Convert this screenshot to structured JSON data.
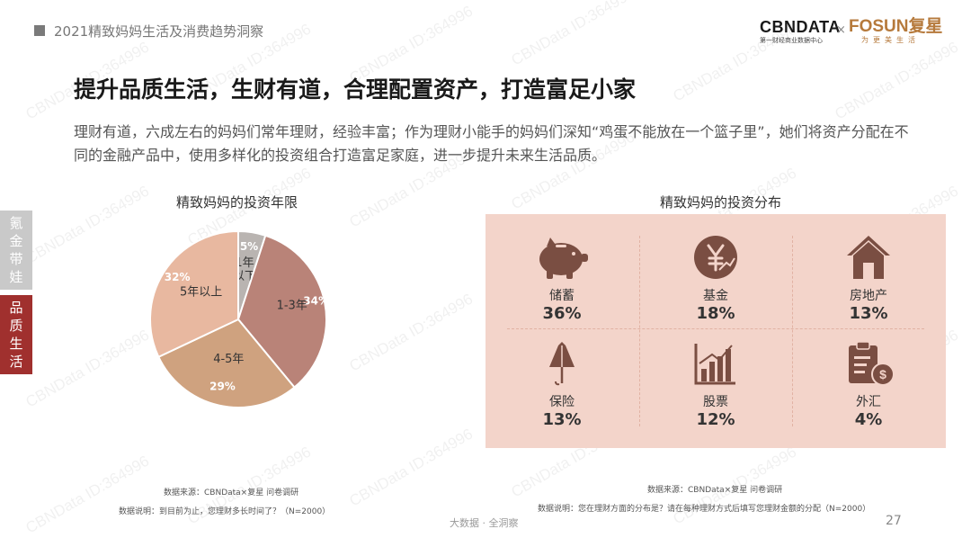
{
  "header": {
    "report_title": "2021精致妈妈生活及消费趋势洞察",
    "logo_cbn": "CBNDATA",
    "logo_cbn_sub": "第一财经商业数据中心",
    "logo_x": "×",
    "logo_fosun": "FOSUN复星",
    "logo_fosun_sub": "为更美生活"
  },
  "headline": "提升品质生活，生财有道，合理配置资产，打造富足小家",
  "body": "理财有道，六成左右的妈妈们常年理财，经验丰富；作为理财小能手的妈妈们深知“鸡蛋不能放在一个篮子里”，她们将资产分配在不同的金融产品中，使用多样化的投资组合打造富足家庭，进一步提升未来生活品质。",
  "side_tabs": [
    {
      "label": "氪金带娃",
      "color": "#c9c9c9"
    },
    {
      "label": "品质生活",
      "color": "#a0302e"
    }
  ],
  "watermark": "CBNData ID:364996",
  "chart_data": [
    {
      "type": "pie",
      "title": "精致妈妈的投资年限",
      "slices": [
        {
          "label": "1年以下",
          "value": 5,
          "pct_label": "5%",
          "color": "#b9b4b1"
        },
        {
          "label": "1-3年",
          "value": 34,
          "pct_label": "34%",
          "color": "#b98378"
        },
        {
          "label": "4-5年",
          "value": 29,
          "pct_label": "29%",
          "color": "#cfa27f"
        },
        {
          "label": "5年以上",
          "value": 32,
          "pct_label": "32%",
          "color": "#e8b8a0"
        }
      ],
      "source": "数据来源：CBNData×复星 问卷调研",
      "note": "数据说明：到目前为止，您理财多长时间了？（N=2000）"
    },
    {
      "type": "table",
      "title": "精致妈妈的投资分布",
      "items": [
        {
          "label": "储蓄",
          "value": 36,
          "display": "36%",
          "icon": "piggy-bank-icon"
        },
        {
          "label": "基金",
          "value": 18,
          "display": "18%",
          "icon": "yuan-coin-icon"
        },
        {
          "label": "房地产",
          "value": 13,
          "display": "13%",
          "icon": "house-icon"
        },
        {
          "label": "保险",
          "value": 13,
          "display": "13%",
          "icon": "umbrella-icon"
        },
        {
          "label": "股票",
          "value": 12,
          "display": "12%",
          "icon": "bar-chart-icon"
        },
        {
          "label": "外汇",
          "value": 4,
          "display": "4%",
          "icon": "document-dollar-icon"
        }
      ],
      "source": "数据来源：CBNData×复星 问卷调研",
      "note": "数据说明：您在理财方面的分布是？请在每种理财方式后填写您理财金额的分配（N=2000）"
    }
  ],
  "footer": "大数据 · 全洞察",
  "page_number": "27",
  "colors": {
    "accent_red": "#a0302e",
    "panel_bg": "#f3d4ca",
    "icon_brown": "#7a4e42"
  }
}
